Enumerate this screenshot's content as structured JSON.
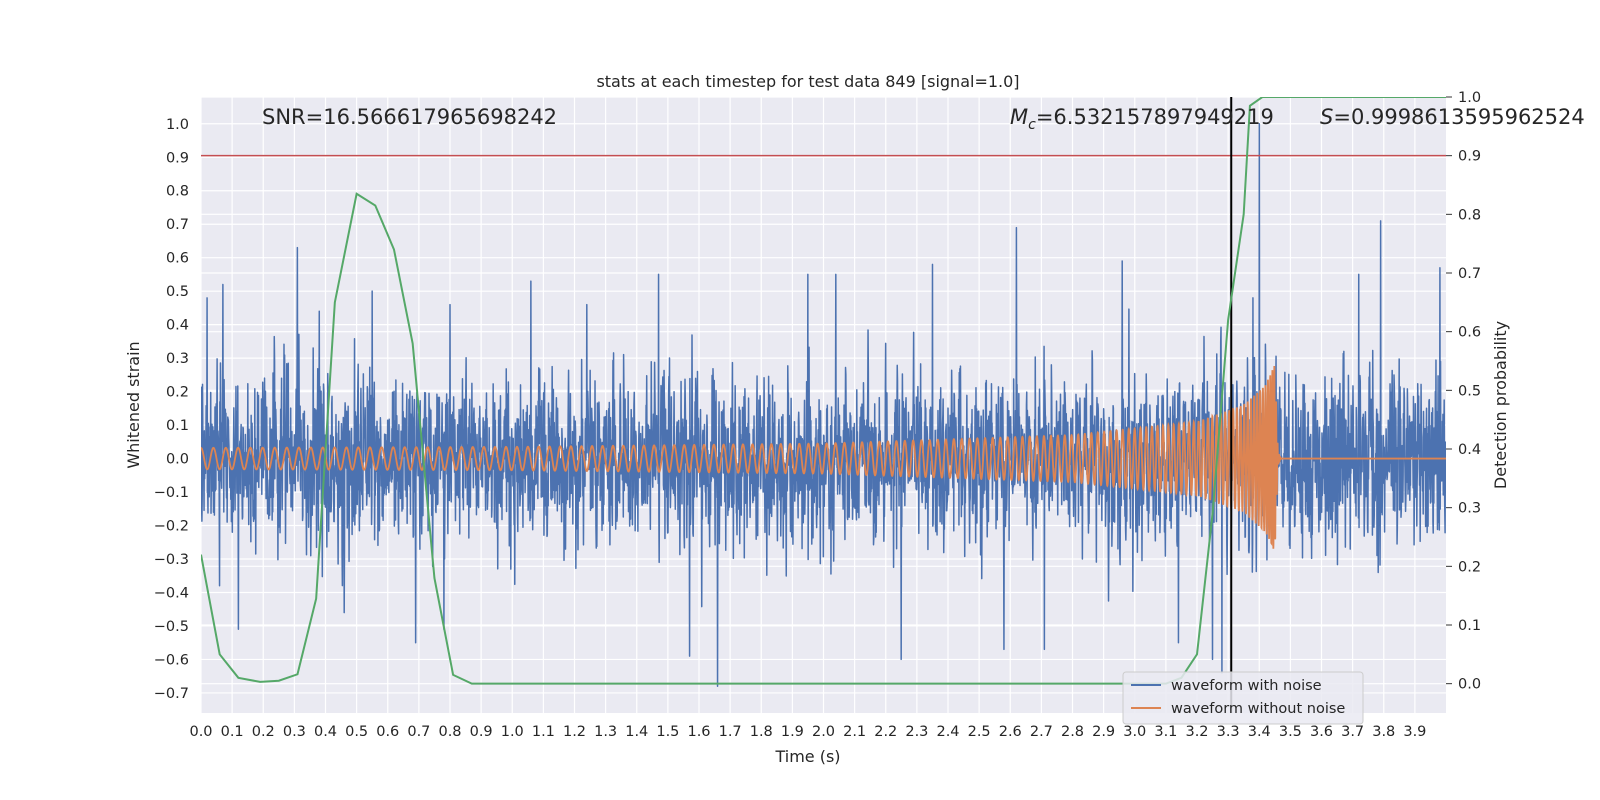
{
  "chart_data": {
    "type": "line",
    "title": "stats at each timestep for test data 849 [signal=1.0]",
    "xlabel": "Time (s)",
    "ylabel": "Whitened strain",
    "ylabel_right": "Detection probability",
    "xlim": [
      0.0,
      4.0
    ],
    "ylim": [
      -0.76,
      1.08
    ],
    "ylim_right": [
      -0.05,
      1.0
    ],
    "x_ticks": [
      "0.0",
      "0.1",
      "0.2",
      "0.3",
      "0.4",
      "0.5",
      "0.6",
      "0.7",
      "0.8",
      "0.9",
      "1.0",
      "1.1",
      "1.2",
      "1.3",
      "1.4",
      "1.5",
      "1.6",
      "1.7",
      "1.8",
      "1.9",
      "2.0",
      "2.1",
      "2.2",
      "2.3",
      "2.4",
      "2.5",
      "2.6",
      "2.7",
      "2.8",
      "2.9",
      "3.0",
      "3.1",
      "3.2",
      "3.3",
      "3.4",
      "3.5",
      "3.6",
      "3.7",
      "3.8",
      "3.9"
    ],
    "y_ticks": [
      "-0.7",
      "-0.6",
      "-0.5",
      "-0.4",
      "-0.3",
      "-0.2",
      "-0.1",
      "0.0",
      "0.1",
      "0.2",
      "0.3",
      "0.4",
      "0.5",
      "0.6",
      "0.7",
      "0.8",
      "0.9",
      "1.0"
    ],
    "y_ticks_right": [
      "0.0",
      "0.1",
      "0.2",
      "0.3",
      "0.4",
      "0.5",
      "0.6",
      "0.7",
      "0.8",
      "0.9",
      "1.0"
    ],
    "annotations": {
      "snr": "SNR=16.566617965698242",
      "mc_symbol": "M",
      "mc_sub": "c",
      "mc_value": "=6.532157897949219",
      "s_symbol": "S",
      "s_value": "=0.9998613595962524"
    },
    "threshold_right": 0.9,
    "vertical_line_x": 3.31,
    "legend": {
      "placement": "lower-right"
    },
    "grid": true,
    "series": [
      {
        "name": "waveform with noise",
        "color": "#4c72b0",
        "description_kind": "noise",
        "noise_amplitude_typical": 0.16,
        "peaks": [
          {
            "x": 0.02,
            "y": 0.48
          },
          {
            "x": 0.06,
            "y": -0.38
          },
          {
            "x": 0.07,
            "y": 0.52
          },
          {
            "x": 0.12,
            "y": -0.51
          },
          {
            "x": 0.31,
            "y": 0.63
          },
          {
            "x": 0.38,
            "y": 0.44
          },
          {
            "x": 0.46,
            "y": -0.46
          },
          {
            "x": 0.55,
            "y": 0.5
          },
          {
            "x": 0.69,
            "y": -0.55
          },
          {
            "x": 0.78,
            "y": -0.51
          },
          {
            "x": 0.8,
            "y": 0.46
          },
          {
            "x": 1.06,
            "y": 0.53
          },
          {
            "x": 1.24,
            "y": 0.46
          },
          {
            "x": 1.47,
            "y": 0.55
          },
          {
            "x": 1.57,
            "y": -0.59
          },
          {
            "x": 1.66,
            "y": -0.68
          },
          {
            "x": 1.95,
            "y": 0.55
          },
          {
            "x": 2.04,
            "y": 0.55
          },
          {
            "x": 2.25,
            "y": -0.6
          },
          {
            "x": 2.35,
            "y": 0.58
          },
          {
            "x": 2.58,
            "y": -0.57
          },
          {
            "x": 2.62,
            "y": 0.69
          },
          {
            "x": 2.71,
            "y": -0.57
          },
          {
            "x": 2.96,
            "y": 0.59
          },
          {
            "x": 3.14,
            "y": -0.55
          },
          {
            "x": 3.25,
            "y": -0.6
          },
          {
            "x": 3.28,
            "y": -0.64
          },
          {
            "x": 3.38,
            "y": 0.48
          },
          {
            "x": 3.4,
            "y": 1.0
          },
          {
            "x": 3.72,
            "y": 0.55
          },
          {
            "x": 3.79,
            "y": 0.71
          },
          {
            "x": 3.98,
            "y": 0.57
          }
        ]
      },
      {
        "name": "waveform without noise",
        "color": "#dd8452",
        "description_kind": "chirp",
        "amplitude_start": 0.032,
        "amplitude_peak": 0.28,
        "merger_time": 3.45,
        "frequency_start_hz": 25,
        "frequency_end_hz": 300,
        "envelope": [
          {
            "x": 0.0,
            "y": 0.032
          },
          {
            "x": 1.0,
            "y": 0.035
          },
          {
            "x": 2.0,
            "y": 0.045
          },
          {
            "x": 2.8,
            "y": 0.07
          },
          {
            "x": 3.2,
            "y": 0.11
          },
          {
            "x": 3.35,
            "y": 0.16
          },
          {
            "x": 3.42,
            "y": 0.22
          },
          {
            "x": 3.45,
            "y": 0.28
          },
          {
            "x": 3.46,
            "y": 0.02
          },
          {
            "x": 3.47,
            "y": 0.0
          },
          {
            "x": 4.0,
            "y": 0.0
          }
        ]
      },
      {
        "name": "",
        "color": "#55a868",
        "axis": "right",
        "x": [
          0.0,
          0.06,
          0.12,
          0.19,
          0.25,
          0.31,
          0.37,
          0.43,
          0.5,
          0.56,
          0.62,
          0.68,
          0.75,
          0.81,
          0.87,
          0.93,
          1.0,
          2.0,
          3.0,
          3.1,
          3.15,
          3.2,
          3.25,
          3.3,
          3.35,
          3.37,
          3.41,
          3.5,
          4.0
        ],
        "y": [
          0.22,
          0.05,
          0.01,
          0.003,
          0.005,
          0.016,
          0.145,
          0.65,
          0.835,
          0.815,
          0.74,
          0.58,
          0.18,
          0.015,
          0.0,
          0.0,
          0.0,
          0.0,
          0.0,
          0.0,
          0.01,
          0.05,
          0.29,
          0.62,
          0.8,
          0.985,
          1.0,
          1.0,
          1.0
        ]
      }
    ]
  }
}
